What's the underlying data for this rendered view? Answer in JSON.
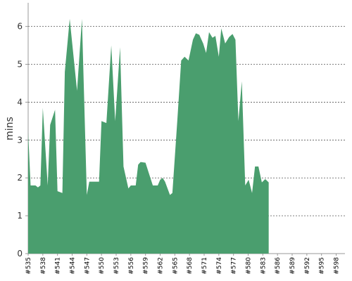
{
  "chart_data": {
    "type": "area",
    "ylabel": "mins",
    "ylim": [
      0,
      6.55
    ],
    "yticks": [
      "0",
      "1",
      "2",
      "3",
      "4",
      "5",
      "6"
    ],
    "grid": "horizontal dashed",
    "x_tick_labels": [
      "#535",
      "#538",
      "#541",
      "#544",
      "#547",
      "#550",
      "#553",
      "#556",
      "#559",
      "#562",
      "#565",
      "#568",
      "#571",
      "#574",
      "#577",
      "#580",
      "#583",
      "#586",
      "#589",
      "#592",
      "#595",
      "#598"
    ],
    "series": [
      {
        "color": "#4a9e6e",
        "points": [
          [
            535,
            3.2
          ],
          [
            535.5,
            1.8
          ],
          [
            536.5,
            1.8
          ],
          [
            537,
            1.75
          ],
          [
            537.5,
            1.8
          ],
          [
            538,
            3.85
          ],
          [
            539,
            1.8
          ],
          [
            539.5,
            3.4
          ],
          [
            540.5,
            3.8
          ],
          [
            541,
            1.65
          ],
          [
            542,
            1.6
          ],
          [
            542.5,
            4.8
          ],
          [
            543.5,
            6.2
          ],
          [
            545,
            4.3
          ],
          [
            546,
            6.2
          ],
          [
            547,
            1.55
          ],
          [
            547.5,
            1.9
          ],
          [
            548.5,
            1.9
          ],
          [
            549.5,
            1.9
          ],
          [
            550,
            3.5
          ],
          [
            551,
            3.45
          ],
          [
            552,
            5.5
          ],
          [
            552.8,
            3.5
          ],
          [
            553.8,
            5.45
          ],
          [
            554.5,
            2.3
          ],
          [
            555.5,
            1.72
          ],
          [
            556,
            1.8
          ],
          [
            557,
            1.8
          ],
          [
            557.5,
            2.35
          ],
          [
            558,
            2.42
          ],
          [
            559,
            2.4
          ],
          [
            560,
            2.0
          ],
          [
            560.5,
            1.8
          ],
          [
            561.5,
            1.8
          ],
          [
            562,
            1.95
          ],
          [
            562.5,
            2.0
          ],
          [
            563,
            1.9
          ],
          [
            564,
            1.55
          ],
          [
            564.5,
            1.6
          ],
          [
            565.5,
            3.5
          ],
          [
            566.3,
            5.1
          ],
          [
            567,
            5.2
          ],
          [
            567.8,
            5.1
          ],
          [
            568.7,
            5.65
          ],
          [
            569.3,
            5.82
          ],
          [
            570,
            5.78
          ],
          [
            570.8,
            5.55
          ],
          [
            571.4,
            5.3
          ],
          [
            572,
            5.85
          ],
          [
            572.7,
            5.7
          ],
          [
            573.3,
            5.75
          ],
          [
            574,
            5.2
          ],
          [
            574.5,
            5.95
          ],
          [
            575.3,
            5.55
          ],
          [
            576.1,
            5.72
          ],
          [
            576.8,
            5.8
          ],
          [
            577.4,
            5.65
          ],
          [
            578,
            3.5
          ],
          [
            578.7,
            4.55
          ],
          [
            579.4,
            1.8
          ],
          [
            580.1,
            1.95
          ],
          [
            580.8,
            1.6
          ],
          [
            581.4,
            2.3
          ],
          [
            582.1,
            2.3
          ],
          [
            582.8,
            1.88
          ],
          [
            583.5,
            1.97
          ],
          [
            584.2,
            1.88
          ]
        ]
      }
    ]
  }
}
